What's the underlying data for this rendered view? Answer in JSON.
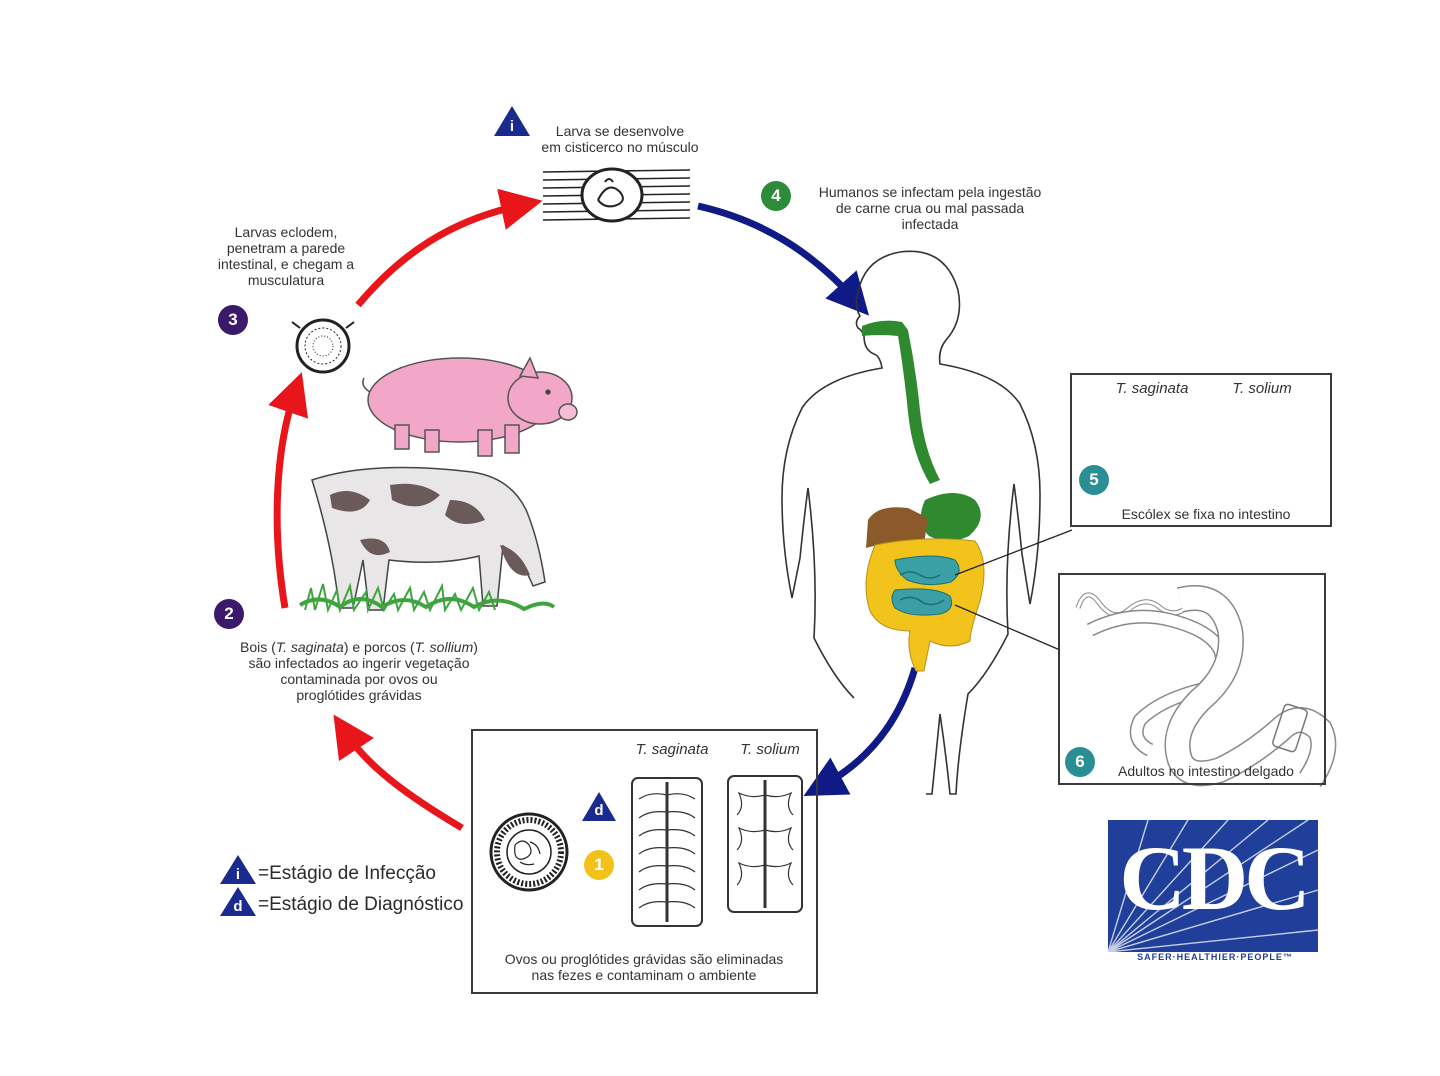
{
  "steps": {
    "step1": {
      "number": "1",
      "label_line1": "Ovos ou proglótides grávidas são eliminadas",
      "label_line2": "nas fezes e contaminam o ambiente"
    },
    "step2": {
      "number": "2",
      "label_line1_a": "Bois (",
      "label_line1_b": "T. saginata",
      "label_line1_c": ") e porcos (",
      "label_line1_d": "T. sollium",
      "label_line1_e": ")",
      "label_line2": "são infectados ao ingerir vegetação",
      "label_line3": "contaminada por ovos ou",
      "label_line4": "proglótides grávidas"
    },
    "step3": {
      "number": "3",
      "label_line1": "Larvas eclodem,",
      "label_line2": "penetram a parede",
      "label_line3": "intestinal, e chegam a",
      "label_line4": "musculatura"
    },
    "step_i": {
      "label_line1": "Larva se desenvolve",
      "label_line2": "em cisticerco no músculo"
    },
    "step4": {
      "number": "4",
      "label_line1": "Humanos se infectam pela ingestão",
      "label_line2": "de carne crua ou mal passada",
      "label_line3": "infectada"
    },
    "step5": {
      "number": "5",
      "label": "Escólex se fixa no intestino"
    },
    "step6": {
      "number": "6",
      "label": "Adultos no intestino delgado"
    }
  },
  "species": {
    "a": "T. saginata",
    "b": "T. solium"
  },
  "markers": {
    "infection": "i",
    "diagnostic": "d"
  },
  "legend": {
    "infection": "=Estágio de Infecção",
    "diagnostic": "=Estágio de Diagnóstico"
  },
  "logo": {
    "text": "CDC",
    "tagline": "SAFER·HEALTHIER·PEOPLE™"
  },
  "colors": {
    "red_arrow": "#e8161b",
    "blue_arrow": "#0f1a86",
    "marker_blue": "#1b2a8e",
    "step_purple": "#3b1a6b",
    "step_green": "#2e8b3a",
    "step_teal": "#2a8f94",
    "step_yellow": "#f2c21a",
    "cdc_blue": "#1f3f9b",
    "gut_green": "#2f8a2f",
    "colon_yellow": "#f2c31b",
    "liver_brown": "#8b5a2b",
    "small_int_teal": "#3aa0a6",
    "pig_pink": "#f2a6c8"
  }
}
